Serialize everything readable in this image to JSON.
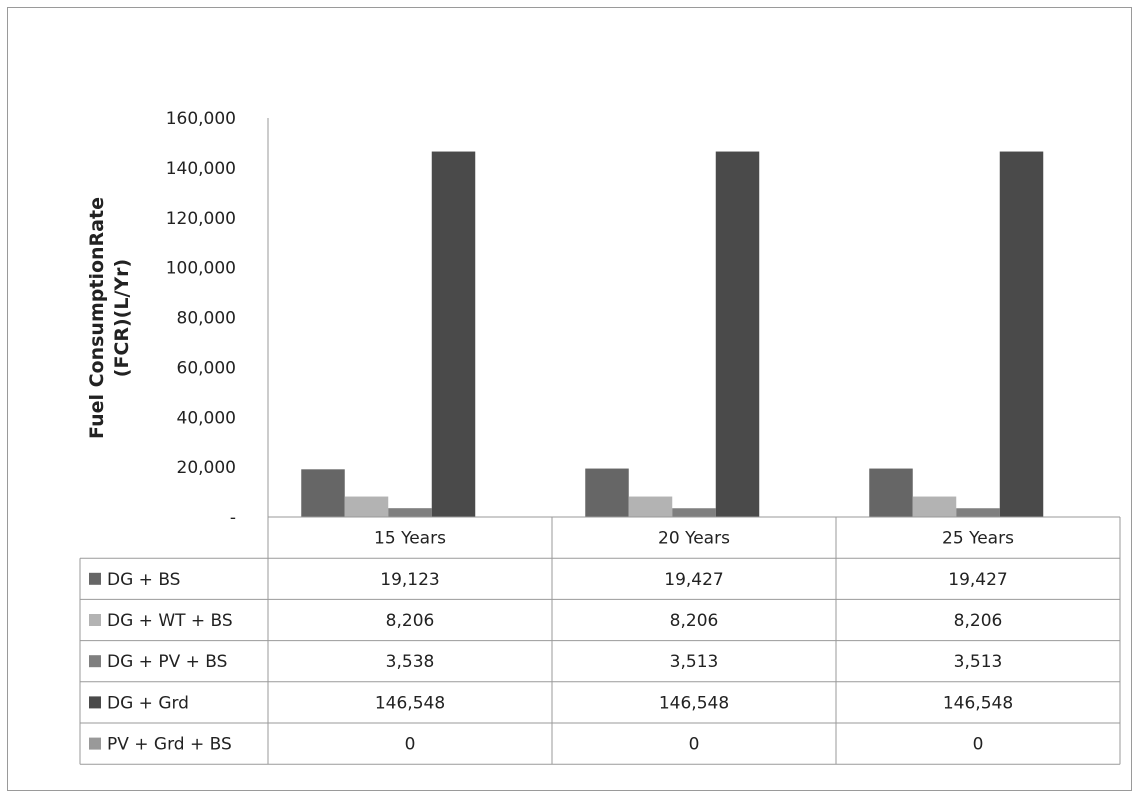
{
  "chart_data": {
    "type": "bar",
    "title": "",
    "xlabel": "",
    "ylabel_lines": [
      "Fuel ConsumptionRate",
      "(FCR)(L/Yr)"
    ],
    "categories": [
      "15 Years",
      "20 Years",
      "25 Years"
    ],
    "ylim": [
      0,
      160000
    ],
    "yticks": [
      0,
      20000,
      40000,
      60000,
      80000,
      100000,
      120000,
      140000,
      160000
    ],
    "ytick_labels": [
      "-",
      "20,000",
      "40,000",
      "60,000",
      "80,000",
      "100,000",
      "120,000",
      "140,000",
      "160,000"
    ],
    "grid": false,
    "legend": "data-table",
    "series": [
      {
        "name": "DG + BS",
        "color": "#666666",
        "values": [
          19123,
          19427,
          19427
        ],
        "labels": [
          "19,123",
          "19,427",
          "19,427"
        ]
      },
      {
        "name": "DG + WT + BS",
        "color": "#b3b3b3",
        "values": [
          8206,
          8206,
          8206
        ],
        "labels": [
          "8,206",
          "8,206",
          "8,206"
        ]
      },
      {
        "name": "DG + PV + BS",
        "color": "#7f7f7f",
        "values": [
          3538,
          3513,
          3513
        ],
        "labels": [
          "3,538",
          "3,513",
          "3,513"
        ]
      },
      {
        "name": "DG + Grd",
        "color": "#4a4a4a",
        "values": [
          146548,
          146548,
          146548
        ],
        "labels": [
          "146,548",
          "146,548",
          "146,548"
        ]
      },
      {
        "name": "PV + Grd + BS",
        "color": "#999999",
        "values": [
          0,
          0,
          0
        ],
        "labels": [
          "0",
          "0",
          "0"
        ]
      }
    ]
  }
}
